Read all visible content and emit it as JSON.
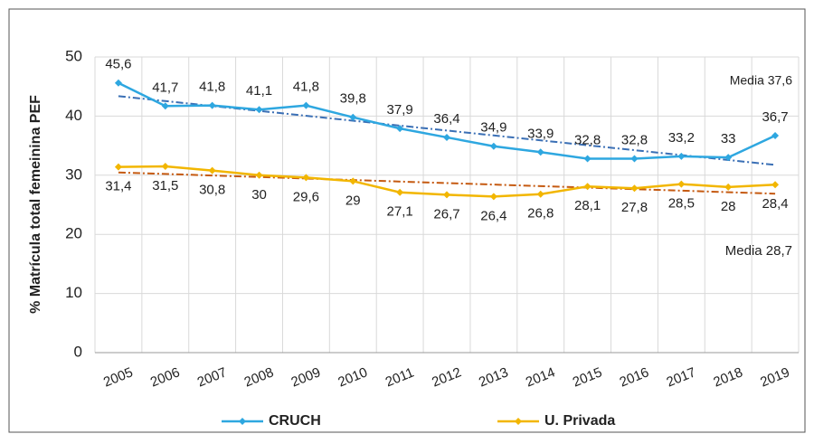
{
  "chart_data": {
    "type": "line",
    "y_label": "% Matrícula total femeinina PEF",
    "categories": [
      "2005",
      "2006",
      "2007",
      "2008",
      "2009",
      "2010",
      "2011",
      "2012",
      "2013",
      "2014",
      "2015",
      "2016",
      "2017",
      "2018",
      "2019"
    ],
    "series": [
      {
        "name": "CRUCH",
        "color": "#2ea7e0",
        "trend_color": "#3a6fb5",
        "label_side": "above",
        "values": [
          45.6,
          41.7,
          41.8,
          41.1,
          41.8,
          39.8,
          37.9,
          36.4,
          34.9,
          33.9,
          32.8,
          32.8,
          33.2,
          33,
          36.7
        ],
        "value_labels": [
          "45,6",
          "41,7",
          "41,8",
          "41,1",
          "41,8",
          "39,8",
          "37,9",
          "36,4",
          "34,9",
          "33,9",
          "32,8",
          "32,8",
          "33,2",
          "33",
          "36,7"
        ]
      },
      {
        "name": "U. Privada",
        "color": "#f2b600",
        "trend_color": "#c55a11",
        "label_side": "below",
        "values": [
          31.4,
          31.5,
          30.8,
          30,
          29.6,
          29,
          27.1,
          26.7,
          26.4,
          26.8,
          28.1,
          27.8,
          28.5,
          28,
          28.4
        ],
        "value_labels": [
          "31,4",
          "31,5",
          "30,8",
          "30",
          "29,6",
          "29",
          "27,1",
          "26,7",
          "26,4",
          "26,8",
          "28,1",
          "27,8",
          "28,5",
          "28",
          "28,4"
        ]
      }
    ],
    "annotations": [
      "Media 37,6",
      "Media 28,7"
    ],
    "trendline": true,
    "ylim": [
      0,
      50
    ],
    "yticks": [
      0,
      10,
      20,
      30,
      40,
      50
    ],
    "grid": true,
    "legend": "bottom"
  }
}
